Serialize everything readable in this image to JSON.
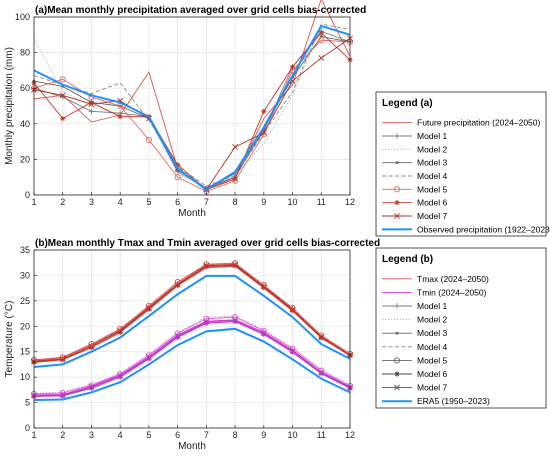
{
  "chart_data": [
    {
      "type": "line",
      "title": "(a)Mean monthly precipitation averaged over grid cells bias-corrected",
      "xlabel": "Month",
      "ylabel": "Monthly precipitation (mm)",
      "x": [
        1,
        2,
        3,
        4,
        5,
        6,
        7,
        8,
        9,
        10,
        11,
        12
      ],
      "xlim": [
        1,
        12
      ],
      "ylim": [
        0,
        100
      ],
      "yticks": [
        0,
        20,
        40,
        60,
        80,
        100
      ],
      "grid": true,
      "legend_title": "Legend (a)",
      "series": [
        {
          "name": "Future precipitation (2024–2050)",
          "color": "#d9534f",
          "style": "solid",
          "marker": "none",
          "values": [
            54,
            56,
            41,
            45,
            69,
            15,
            3,
            10,
            43,
            62,
            110,
            78
          ]
        },
        {
          "name": "Model 1",
          "color": "#7a7a7a",
          "style": "solid",
          "marker": "plus",
          "values": [
            60,
            55,
            47,
            46,
            44,
            13,
            4,
            12,
            36,
            72,
            92,
            86
          ]
        },
        {
          "name": "Model 2",
          "color": "#aaaaaa",
          "style": "dotted",
          "marker": "none",
          "values": [
            88,
            58,
            50,
            45,
            43,
            12,
            4,
            11,
            29,
            56,
            95,
            90
          ]
        },
        {
          "name": "Model 3",
          "color": "#666666",
          "style": "solid",
          "marker": "dot",
          "values": [
            64,
            61,
            52,
            50,
            43,
            14,
            4,
            10,
            37,
            66,
            89,
            86
          ]
        },
        {
          "name": "Model 4",
          "color": "#888888",
          "style": "dashed",
          "marker": "none",
          "values": [
            67,
            62,
            57,
            63,
            42,
            16,
            5,
            11,
            35,
            58,
            96,
            93
          ]
        },
        {
          "name": "Model 5",
          "color": "#e06a6a",
          "style": "solid",
          "marker": "circle",
          "values": [
            60,
            65,
            55,
            50,
            31,
            10,
            2,
            8,
            34,
            70,
            87,
            86
          ]
        },
        {
          "name": "Model 6",
          "color": "#c0392b",
          "style": "solid",
          "marker": "asterisk",
          "values": [
            63,
            43,
            52,
            44,
            44,
            17,
            3,
            9,
            47,
            72,
            91,
            76
          ]
        },
        {
          "name": "Model 7",
          "color": "#a93226",
          "style": "solid",
          "marker": "cross",
          "values": [
            59,
            56,
            51,
            53,
            43,
            15,
            3,
            27,
            35,
            64,
            77,
            88
          ]
        },
        {
          "name": "Observed precipitation (1922–2023)",
          "color": "#1e90ff",
          "style": "solid",
          "marker": "none",
          "width": 2,
          "values": [
            70,
            62,
            56,
            52,
            44,
            15,
            3,
            13,
            38,
            67,
            95,
            90
          ]
        }
      ]
    },
    {
      "type": "line",
      "title": "(b)Mean monthly Tmax and Tmin averaged over grid cells bias-corrected",
      "xlabel": "Month",
      "ylabel": "Temperature (°C)",
      "x": [
        1,
        2,
        3,
        4,
        5,
        6,
        7,
        8,
        9,
        10,
        11,
        12
      ],
      "xlim": [
        1,
        12
      ],
      "ylim": [
        0,
        35
      ],
      "yticks": [
        0,
        5,
        10,
        15,
        20,
        25,
        30,
        35
      ],
      "grid": true,
      "legend_title": "Legend (b)",
      "legend": [
        {
          "name": "Tmax (2024–2050)",
          "color": "#d9534f",
          "style": "solid",
          "marker": "none"
        },
        {
          "name": "Tmin (2024–2050)",
          "color": "#e040e0",
          "style": "solid",
          "marker": "none"
        },
        {
          "name": "Model 1",
          "color": "#7a7a7a",
          "style": "solid",
          "marker": "plus"
        },
        {
          "name": "Model 2",
          "color": "#aaaaaa",
          "style": "dotted",
          "marker": "none"
        },
        {
          "name": "Model 3",
          "color": "#666666",
          "style": "solid",
          "marker": "dot"
        },
        {
          "name": "Model 4",
          "color": "#888888",
          "style": "dashed",
          "marker": "none"
        },
        {
          "name": "Model 5",
          "color": "#666666",
          "style": "solid",
          "marker": "circle"
        },
        {
          "name": "Model 6",
          "color": "#444444",
          "style": "solid",
          "marker": "asterisk"
        },
        {
          "name": "Model 7",
          "color": "#555555",
          "style": "solid",
          "marker": "cross"
        },
        {
          "name": "ERA5 (1950–2023)",
          "color": "#1e90ff",
          "style": "solid",
          "marker": "none",
          "width": 2
        }
      ],
      "series": [
        {
          "group": "tmax",
          "color": "#d9534f",
          "style": "solid",
          "marker": "none",
          "values": [
            13.0,
            13.5,
            16.0,
            19.0,
            23.5,
            28.0,
            31.5,
            31.8,
            27.5,
            23.0,
            17.8,
            14.3
          ]
        },
        {
          "group": "tmax",
          "color": "#d9534f",
          "style": "solid",
          "marker": "plus",
          "values": [
            13.2,
            13.8,
            16.3,
            19.3,
            23.8,
            28.4,
            32.0,
            32.2,
            27.9,
            23.4,
            18.0,
            14.5
          ]
        },
        {
          "group": "tmax",
          "color": "#d9534f",
          "style": "solid",
          "marker": "circle",
          "values": [
            13.4,
            13.9,
            16.5,
            19.5,
            24.0,
            28.7,
            32.2,
            32.4,
            28.1,
            23.6,
            18.2,
            14.6
          ]
        },
        {
          "group": "tmax",
          "color": "#c0392b",
          "style": "solid",
          "marker": "asterisk",
          "values": [
            12.9,
            13.4,
            15.8,
            18.8,
            23.3,
            28.0,
            31.7,
            31.9,
            27.6,
            23.1,
            17.7,
            14.2
          ]
        },
        {
          "group": "tmax",
          "color": "#a93226",
          "style": "solid",
          "marker": "cross",
          "values": [
            13.1,
            13.6,
            16.1,
            19.1,
            23.6,
            28.2,
            31.9,
            32.1,
            27.8,
            23.3,
            17.9,
            14.4
          ]
        },
        {
          "group": "tmax",
          "color": "#e06a6a",
          "style": "dashed",
          "marker": "none",
          "values": [
            13.3,
            13.7,
            16.2,
            19.4,
            24.1,
            28.5,
            32.1,
            32.3,
            28.0,
            23.5,
            18.1,
            14.5
          ]
        },
        {
          "group": "tmin",
          "color": "#e040e0",
          "style": "solid",
          "marker": "none",
          "values": [
            6.3,
            6.4,
            8.0,
            10.2,
            13.8,
            18.0,
            20.7,
            21.0,
            18.5,
            15.0,
            10.8,
            7.9
          ]
        },
        {
          "group": "tmin",
          "color": "#e040e0",
          "style": "solid",
          "marker": "plus",
          "values": [
            6.5,
            6.6,
            8.2,
            10.4,
            14.0,
            18.3,
            21.0,
            21.3,
            18.8,
            15.3,
            11.0,
            8.1
          ]
        },
        {
          "group": "tmin",
          "color": "#d65cd6",
          "style": "solid",
          "marker": "circle",
          "values": [
            6.7,
            6.9,
            8.4,
            10.6,
            14.3,
            18.6,
            21.5,
            21.8,
            19.1,
            15.6,
            11.3,
            8.3
          ]
        },
        {
          "group": "tmin",
          "color": "#c030c0",
          "style": "solid",
          "marker": "asterisk",
          "values": [
            6.2,
            6.3,
            7.8,
            10.0,
            13.6,
            17.8,
            20.6,
            20.9,
            18.4,
            14.9,
            10.7,
            7.8
          ]
        },
        {
          "group": "tmin",
          "color": "#b040b0",
          "style": "solid",
          "marker": "cross",
          "values": [
            6.4,
            6.5,
            8.1,
            10.3,
            13.9,
            18.1,
            20.9,
            21.2,
            18.7,
            15.2,
            10.9,
            8.0
          ]
        },
        {
          "group": "tmin",
          "color": "#e080e0",
          "style": "dotted",
          "marker": "none",
          "values": [
            6.8,
            7.1,
            8.6,
            10.8,
            14.5,
            18.8,
            21.8,
            22.0,
            19.3,
            15.8,
            11.5,
            8.4
          ]
        },
        {
          "group": "era5",
          "color": "#1e90ff",
          "style": "solid",
          "marker": "none",
          "width": 2,
          "values": [
            12.0,
            12.5,
            15.0,
            17.8,
            22.0,
            26.3,
            29.9,
            29.9,
            26.0,
            21.8,
            16.5,
            13.6
          ]
        },
        {
          "group": "era5",
          "color": "#1e90ff",
          "style": "solid",
          "marker": "none",
          "width": 2,
          "values": [
            5.5,
            5.6,
            7.0,
            9.0,
            12.5,
            16.3,
            19.0,
            19.5,
            17.0,
            13.5,
            9.7,
            7.0
          ]
        }
      ]
    }
  ]
}
